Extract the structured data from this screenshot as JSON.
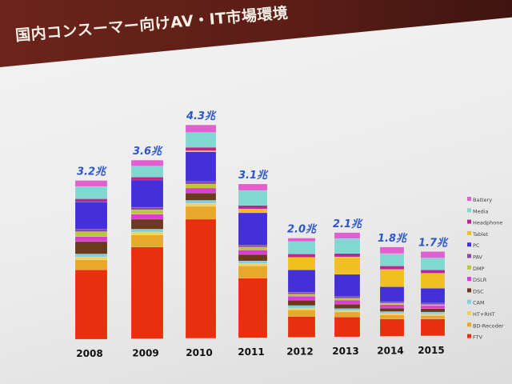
{
  "title": "国内コンスーマー向けAV・IT市場環境",
  "chart_data": {
    "type": "bar",
    "stacked": true,
    "title": "国内コンスーマー向けAV・IT市場環境",
    "categories": [
      "2008",
      "2009",
      "2010",
      "2011",
      "2012",
      "2013",
      "2014",
      "2015"
    ],
    "totals": [
      "3.2兆",
      "3.6兆",
      "4.3兆",
      "3.1兆",
      "2.0兆",
      "2.1兆",
      "1.8兆",
      "1.7兆"
    ],
    "total_values": [
      3.2,
      3.6,
      4.3,
      3.1,
      2.0,
      2.1,
      1.8,
      1.7
    ],
    "ylim": [
      0,
      4.3
    ],
    "legend_position": "right",
    "series": [
      {
        "name": "FTV",
        "color": "#e8300f",
        "values": [
          1.4,
          1.85,
          2.4,
          1.2,
          0.42,
          0.4,
          0.35,
          0.34
        ]
      },
      {
        "name": "BD-Recoder",
        "color": "#e8a82a",
        "values": [
          0.2,
          0.24,
          0.26,
          0.25,
          0.13,
          0.1,
          0.08,
          0.07
        ]
      },
      {
        "name": "HT+RHT",
        "color": "#f0d060",
        "values": [
          0.06,
          0.06,
          0.06,
          0.05,
          0.04,
          0.03,
          0.03,
          0.03
        ]
      },
      {
        "name": "CAM",
        "color": "#7fd0e0",
        "values": [
          0.06,
          0.06,
          0.06,
          0.05,
          0.05,
          0.04,
          0.04,
          0.04
        ]
      },
      {
        "name": "DSC",
        "color": "#6b3a1e",
        "values": [
          0.25,
          0.2,
          0.15,
          0.13,
          0.11,
          0.09,
          0.07,
          0.07
        ]
      },
      {
        "name": "DSLR",
        "color": "#d83fd0",
        "values": [
          0.1,
          0.1,
          0.1,
          0.09,
          0.08,
          0.08,
          0.07,
          0.06
        ]
      },
      {
        "name": "DMP",
        "color": "#b8c83a",
        "values": [
          0.1,
          0.09,
          0.08,
          0.06,
          0.04,
          0.04,
          0.03,
          0.02
        ]
      },
      {
        "name": "PAV",
        "color": "#8a4a9a",
        "values": [
          0.05,
          0.05,
          0.05,
          0.04,
          0.04,
          0.03,
          0.03,
          0.03
        ]
      },
      {
        "name": "PC",
        "color": "#4530d8",
        "values": [
          0.55,
          0.55,
          0.6,
          0.65,
          0.45,
          0.45,
          0.3,
          0.3
        ]
      },
      {
        "name": "Tablet",
        "color": "#f0c020",
        "values": [
          0.0,
          0.0,
          0.02,
          0.08,
          0.25,
          0.35,
          0.35,
          0.3
        ]
      },
      {
        "name": "Headphone",
        "color": "#b82890",
        "values": [
          0.06,
          0.06,
          0.07,
          0.07,
          0.07,
          0.07,
          0.07,
          0.07
        ]
      },
      {
        "name": "Media",
        "color": "#80d8d0",
        "values": [
          0.25,
          0.22,
          0.3,
          0.3,
          0.25,
          0.3,
          0.25,
          0.24
        ]
      },
      {
        "name": "Battery",
        "color": "#e060d0",
        "values": [
          0.12,
          0.12,
          0.15,
          0.13,
          0.07,
          0.12,
          0.13,
          0.13
        ]
      }
    ]
  }
}
